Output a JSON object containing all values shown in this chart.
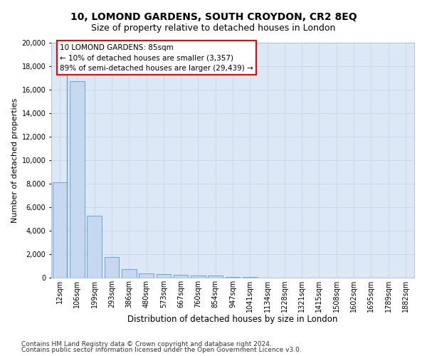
{
  "title1": "10, LOMOND GARDENS, SOUTH CROYDON, CR2 8EQ",
  "title2": "Size of property relative to detached houses in London",
  "xlabel": "Distribution of detached houses by size in London",
  "ylabel": "Number of detached properties",
  "categories": [
    "12sqm",
    "106sqm",
    "199sqm",
    "293sqm",
    "386sqm",
    "480sqm",
    "573sqm",
    "667sqm",
    "760sqm",
    "854sqm",
    "947sqm",
    "1041sqm",
    "1134sqm",
    "1228sqm",
    "1321sqm",
    "1415sqm",
    "1508sqm",
    "1602sqm",
    "1695sqm",
    "1789sqm",
    "1882sqm"
  ],
  "values": [
    8100,
    16700,
    5300,
    1750,
    700,
    350,
    280,
    230,
    200,
    160,
    80,
    50,
    30,
    20,
    15,
    10,
    8,
    6,
    5,
    4,
    3
  ],
  "bar_color": "#c5d8f0",
  "bar_edge_color": "#5b9bd5",
  "background_color": "#dce8f5",
  "annotation_text": "10 LOMOND GARDENS: 85sqm\n← 10% of detached houses are smaller (3,357)\n89% of semi-detached houses are larger (29,439) →",
  "annotation_box_color": "white",
  "annotation_box_edge_color": "red",
  "ylim": [
    0,
    20000
  ],
  "yticks": [
    0,
    2000,
    4000,
    6000,
    8000,
    10000,
    12000,
    14000,
    16000,
    18000,
    20000
  ],
  "footer1": "Contains HM Land Registry data © Crown copyright and database right 2024.",
  "footer2": "Contains public sector information licensed under the Open Government Licence v3.0.",
  "title1_fontsize": 10,
  "title2_fontsize": 9,
  "xlabel_fontsize": 8.5,
  "ylabel_fontsize": 8,
  "tick_fontsize": 7,
  "footer_fontsize": 6.5,
  "annotation_fontsize": 7.5,
  "grid_color": "#c8d8ec"
}
